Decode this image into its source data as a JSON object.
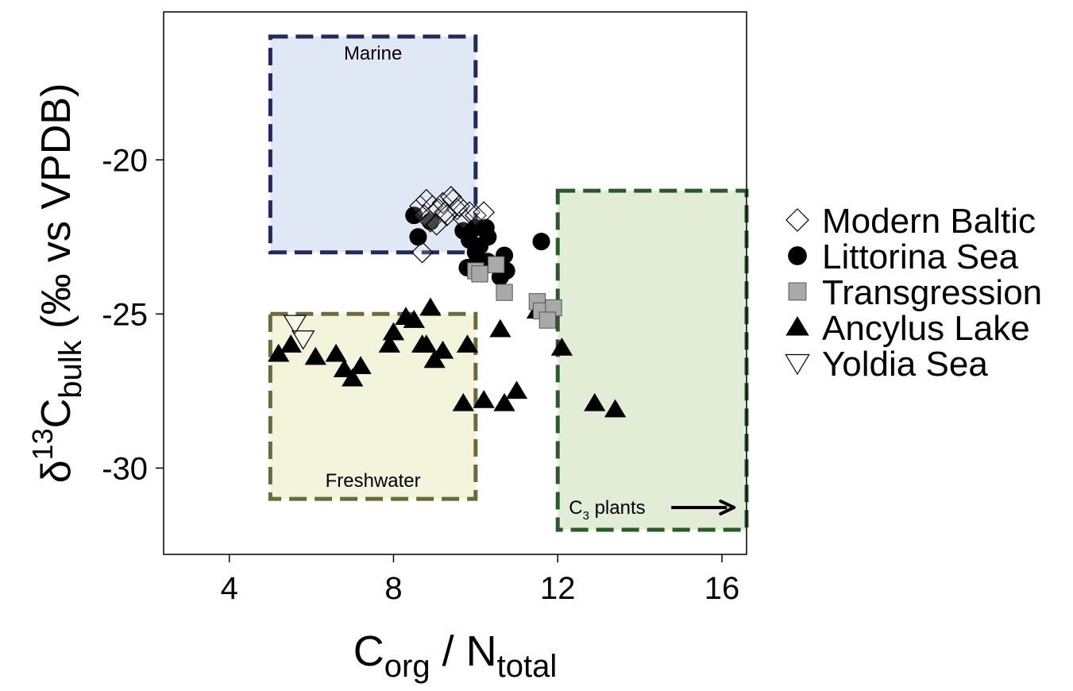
{
  "chart_data": {
    "type": "scatter",
    "xlabel": {
      "main": "C",
      "sub1": "org",
      "mid": " / N",
      "sub2": "total"
    },
    "ylabel": {
      "delta": "δ",
      "sup": "13",
      "main": "C",
      "sub": "bulk",
      "rest": " (‰ vs VPDB)"
    },
    "xlim": [
      2.4,
      16.6
    ],
    "ylim": [
      -32.8,
      -15.2
    ],
    "xticks": [
      4,
      8,
      12,
      16
    ],
    "yticks": [
      -20,
      -25,
      -30
    ],
    "grid": false,
    "legend_position": "right",
    "regions": [
      {
        "label": "Marine",
        "x": [
          5,
          10
        ],
        "y": [
          -23,
          -16
        ],
        "fill": "#e0e7f5",
        "stroke": "#1f2a5e"
      },
      {
        "label": "Freshwater",
        "x": [
          5,
          10
        ],
        "y": [
          -31,
          -25
        ],
        "fill": "#f4f4dd",
        "stroke": "#6b6b3a"
      },
      {
        "label_main": "C",
        "label_sub": "3",
        "label_rest": " plants",
        "x": [
          12,
          16.6
        ],
        "y": [
          -32,
          -21
        ],
        "fill": "#e3ecd7",
        "stroke": "#2a5a2a"
      }
    ],
    "series": [
      {
        "name": "Modern Baltic",
        "marker": "diamond-open",
        "x": [
          8.65,
          8.8,
          8.95,
          9.1,
          9.2,
          9.3,
          9.45,
          9.55,
          9.7,
          8.75,
          8.9,
          9.05,
          9.25,
          9.4,
          9.6,
          9.85,
          10.0,
          10.2,
          8.7
        ],
        "y": [
          -21.5,
          -21.3,
          -21.5,
          -21.6,
          -21.4,
          -21.8,
          -21.3,
          -21.6,
          -21.9,
          -21.8,
          -22.0,
          -22.1,
          -21.7,
          -21.2,
          -21.5,
          -21.7,
          -21.8,
          -21.7,
          -23.0
        ]
      },
      {
        "name": "Littorina Sea",
        "marker": "circle",
        "x": [
          8.5,
          8.6,
          8.9,
          9.7,
          9.85,
          10.0,
          10.1,
          10.25,
          10.3,
          10.0,
          10.15,
          10.3,
          10.7,
          10.75,
          11.6,
          9.8,
          10.05,
          10.6
        ],
        "y": [
          -21.8,
          -22.5,
          -22.0,
          -22.3,
          -22.6,
          -22.2,
          -22.8,
          -22.2,
          -22.5,
          -23.0,
          -23.5,
          -23.3,
          -23.1,
          -23.6,
          -22.65,
          -23.5,
          -23.2,
          -23.8
        ]
      },
      {
        "name": "Transgression",
        "marker": "square",
        "x": [
          10.0,
          10.1,
          10.5,
          10.7,
          11.5,
          11.6,
          11.9,
          11.75
        ],
        "y": [
          -23.6,
          -23.7,
          -23.4,
          -24.3,
          -24.6,
          -24.9,
          -24.8,
          -25.2
        ]
      },
      {
        "name": "Ancylus Lake",
        "marker": "triangle",
        "x": [
          5.2,
          5.5,
          6.1,
          6.6,
          6.8,
          7.0,
          7.2,
          7.9,
          8.0,
          8.3,
          8.5,
          8.7,
          8.9,
          8.8,
          9.0,
          9.2,
          9.8,
          9.7,
          10.2,
          10.6,
          10.7,
          11.0,
          11.5,
          11.7,
          12.1,
          12.9,
          13.4
        ],
        "y": [
          -26.3,
          -26.0,
          -26.4,
          -26.3,
          -26.8,
          -27.1,
          -26.7,
          -26.0,
          -25.6,
          -25.1,
          -25.2,
          -26.0,
          -24.8,
          -26.0,
          -26.5,
          -26.2,
          -26.0,
          -27.9,
          -27.8,
          -25.5,
          -27.9,
          -27.5,
          -24.9,
          -24.9,
          -26.1,
          -27.9,
          -28.1
        ]
      },
      {
        "name": "Yoldia Sea",
        "marker": "triangle-down-open",
        "x": [
          5.6,
          5.8
        ],
        "y": [
          -25.3,
          -25.8
        ]
      }
    ]
  }
}
